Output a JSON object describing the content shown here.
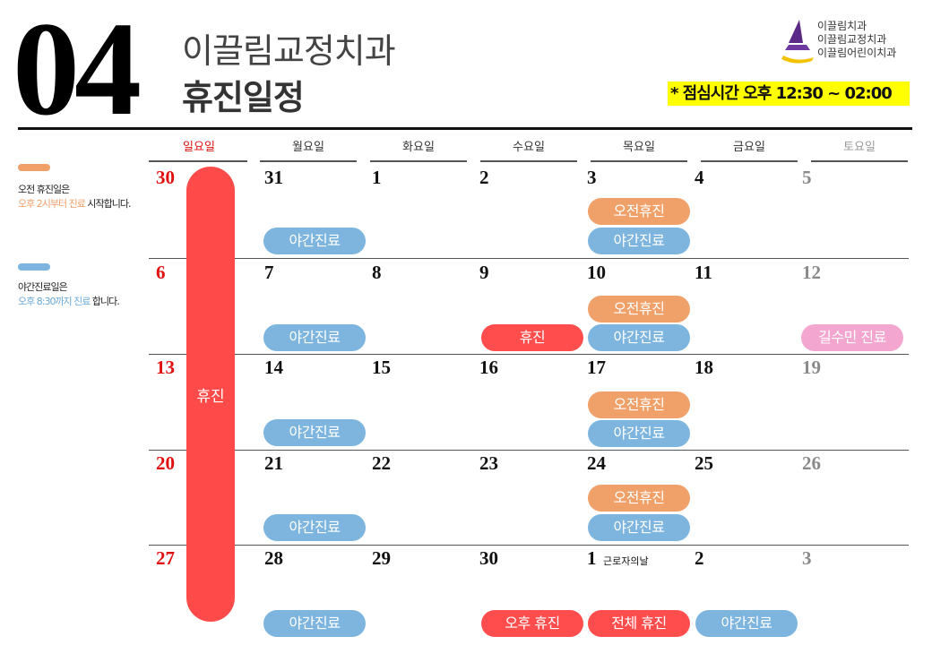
{
  "header": {
    "month": "04",
    "clinic_name": "이끌림교정치과",
    "title": "휴진일정",
    "lunch": "* 점심시간  오후 12:30 ~ 02:00",
    "logo_lines": [
      "이끌림치과",
      "이끌림교정치과",
      "이끌림어린이치과"
    ]
  },
  "legend": {
    "morning_prefix": "오전 휴진일은",
    "morning_highlight": "오후 2시부터 진료",
    "morning_suffix": " 시작합니다.",
    "night_prefix": "야간진료일은",
    "night_highlight": "오후 8:30까지 진료",
    "night_suffix": " 합니다.",
    "colors": {
      "morning": "#f0a069",
      "night": "#7db5df"
    }
  },
  "weekdays": [
    "일요일",
    "월요일",
    "화요일",
    "수요일",
    "목요일",
    "금요일",
    "토요일"
  ],
  "weeks": [
    [
      "30",
      "31",
      "1",
      "2",
      "3",
      "4",
      "5"
    ],
    [
      "6",
      "7",
      "8",
      "9",
      "10",
      "11",
      "12"
    ],
    [
      "13",
      "14",
      "15",
      "16",
      "17",
      "18",
      "19"
    ],
    [
      "20",
      "21",
      "22",
      "23",
      "24",
      "25",
      "26"
    ],
    [
      "27",
      "28",
      "29",
      "30",
      "1",
      "2",
      "3"
    ]
  ],
  "day_note": "근로자의날",
  "sunday_closed": "휴진",
  "labels": {
    "night": "야간진료",
    "morning_off": "오전휴진",
    "closed": "휴진",
    "guest_doctor": "길수민 진료",
    "afternoon_off": "오후 휴진",
    "full_off": "전체 휴진"
  },
  "colors": {
    "blue": "#7db5df",
    "orange": "#f0a069",
    "red": "#ff4d4d",
    "pink": "#f3a6cf",
    "sunday": "#e01010",
    "saturday": "#8a8a8a",
    "lunch_bg": "#ffff00"
  }
}
